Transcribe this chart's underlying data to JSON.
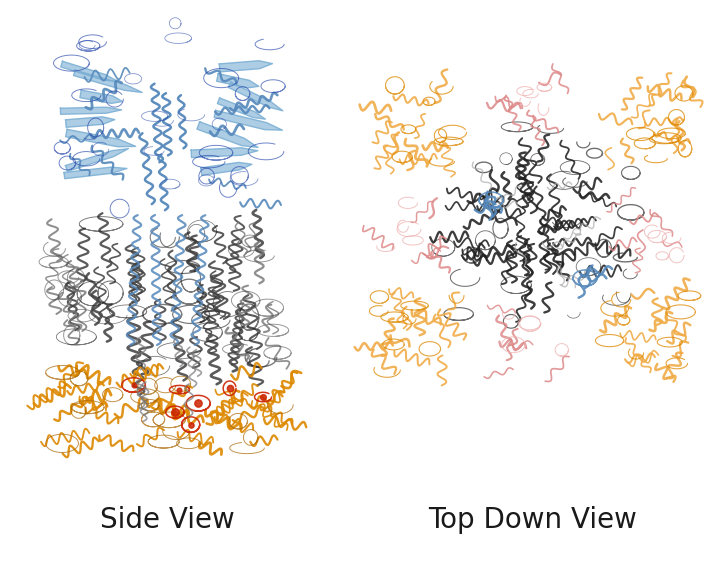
{
  "background_color": "#ffffff",
  "label_left": "Side View",
  "label_right": "Top Down View",
  "label_fontsize": 20,
  "label_color": "#1a1a1a",
  "fig_width": 7.15,
  "fig_height": 5.63,
  "colors": {
    "blue_light": "#7bafd4",
    "blue_mid": "#5588bb",
    "blue_dark": "#2244aa",
    "gray_light": "#aaaaaa",
    "gray_mid": "#777777",
    "gray_dark": "#444444",
    "gray_black": "#222222",
    "orange_light": "#f0aa44",
    "orange_mid": "#dd8800",
    "orange_dark": "#aa6600",
    "red": "#cc2200",
    "pink": "#dd8888",
    "pink_light": "#eeb0b0",
    "white": "#ffffff"
  }
}
